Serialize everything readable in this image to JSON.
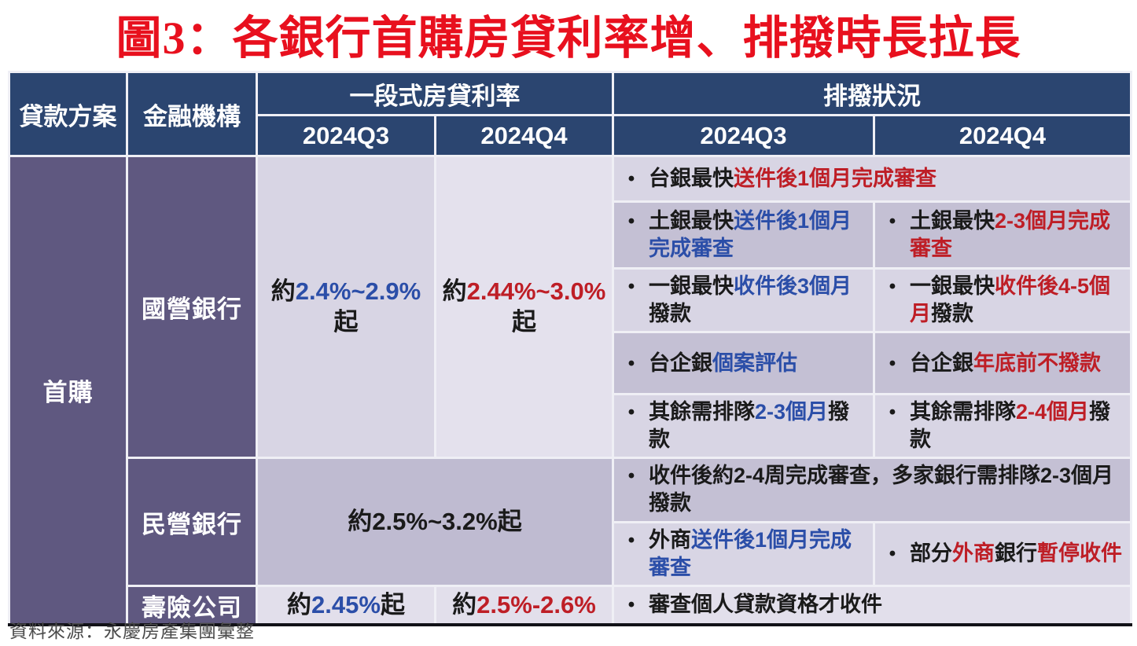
{
  "title": "圖3：各銀行首購房貸利率增、排撥時長拉長",
  "source_note": "資料來源：永慶房產集團彙整",
  "glyphs": {
    "bullet": "•"
  },
  "colors": {
    "title_red": "#E8101E",
    "header_bg": "#2B4570",
    "label_bg": "#5F5880",
    "row_light": "#D8D5E4",
    "row_lighter": "#E4E1ED",
    "row_dark": "#C4C0D4",
    "row_mid": "#BFBBD1",
    "row_pale": "#E2DFEB",
    "text_black": "#1A1A1A",
    "text_blue": "#2B4EA8",
    "text_red": "#BE1E26",
    "grid_line": "#EFEFF5",
    "outer_border": "#121218",
    "source_gray": "#4B4B4B"
  },
  "table": {
    "headers": {
      "loan_plan": "貸款方案",
      "institution": "金融機構",
      "rate_group": "一段式房貸利率",
      "disb_group": "排撥狀況",
      "q3": "2024Q3",
      "q4": "2024Q4"
    },
    "loan_plan": "首購",
    "institutions": {
      "state": "國營銀行",
      "private": "民營銀行",
      "life": "壽險公司"
    },
    "rates": {
      "state_q3": [
        {
          "t": "約",
          "c": "k"
        },
        {
          "t": "2.4%~2.9%",
          "c": "b"
        },
        {
          "t": "起",
          "c": "k"
        }
      ],
      "state_q4": [
        {
          "t": "約",
          "c": "k"
        },
        {
          "t": "2.44%~3.0%",
          "c": "r"
        },
        {
          "t": "起",
          "c": "k"
        }
      ],
      "private_all": [
        {
          "t": "約2.5%~3.2%起",
          "c": "k"
        }
      ],
      "life_q3": [
        {
          "t": "約",
          "c": "k"
        },
        {
          "t": "2.45%",
          "c": "b"
        },
        {
          "t": "起",
          "c": "k"
        }
      ],
      "life_q4": [
        {
          "t": "約",
          "c": "k"
        },
        {
          "t": "2.5%-2.6%",
          "c": "r"
        }
      ]
    },
    "disbursement": {
      "row_a": [
        {
          "t": "台銀最快",
          "c": "k"
        },
        {
          "t": "送件後1個月完成審查",
          "c": "r"
        }
      ],
      "row_b_q3": [
        {
          "t": "土銀最快",
          "c": "k"
        },
        {
          "t": "送件後1個月完成審查",
          "c": "b"
        }
      ],
      "row_b_q4": [
        {
          "t": "土銀最快",
          "c": "k"
        },
        {
          "t": "2-3個月完成審查",
          "c": "r"
        }
      ],
      "row_c_q3": [
        {
          "t": "一銀最快",
          "c": "k"
        },
        {
          "t": "收件後3個月",
          "c": "b"
        },
        {
          "t": "撥款",
          "c": "k"
        }
      ],
      "row_c_q4": [
        {
          "t": "一銀最快",
          "c": "k"
        },
        {
          "t": "收件後4-5個月",
          "c": "r"
        },
        {
          "t": "撥款",
          "c": "k"
        }
      ],
      "row_d_q3": [
        {
          "t": "台企銀",
          "c": "k"
        },
        {
          "t": "個案評估",
          "c": "b"
        }
      ],
      "row_d_q4": [
        {
          "t": "台企銀",
          "c": "k"
        },
        {
          "t": "年底前不撥款",
          "c": "r"
        }
      ],
      "row_e_q3": [
        {
          "t": "其餘需排隊",
          "c": "k"
        },
        {
          "t": "2-3個月",
          "c": "b"
        },
        {
          "t": "撥款",
          "c": "k"
        }
      ],
      "row_e_q4": [
        {
          "t": "其餘需排隊",
          "c": "k"
        },
        {
          "t": "2-4個月",
          "c": "r"
        },
        {
          "t": "撥款",
          "c": "k"
        }
      ],
      "row_f": [
        {
          "t": "收件後約2-4周完成審查，多家銀行需排隊2-3個月撥款",
          "c": "k"
        }
      ],
      "row_g_q3": [
        {
          "t": "外商",
          "c": "k"
        },
        {
          "t": "送件後1個月完成審查",
          "c": "b"
        }
      ],
      "row_g_q4": [
        {
          "t": "部分",
          "c": "k"
        },
        {
          "t": "外商",
          "c": "r"
        },
        {
          "t": "銀行",
          "c": "k"
        },
        {
          "t": "暫停收件",
          "c": "r"
        }
      ],
      "row_h": [
        {
          "t": "審查個人貸款資格才收件",
          "c": "k"
        }
      ]
    }
  },
  "chart_data": {
    "type": "table",
    "title": "圖3：各銀行首購房貸利率增、排撥時長拉長",
    "columns": [
      "貸款方案",
      "金融機構",
      "一段式房貸利率 2024Q3",
      "一段式房貸利率 2024Q4",
      "排撥狀況 2024Q3",
      "排撥狀況 2024Q4"
    ],
    "loan_plan": "首購",
    "rows": [
      {
        "institution": "國營銀行",
        "rate_2024Q3": "約2.4%~2.9%起",
        "rate_2024Q4": "約2.44%~3.0%起",
        "disbursement_common": [
          "台銀最快送件後1個月完成審查"
        ],
        "disbursement_2024Q3": [
          "土銀最快送件後1個月完成審查",
          "一銀最快收件後3個月撥款",
          "台企銀個案評估",
          "其餘需排隊2-3個月撥款"
        ],
        "disbursement_2024Q4": [
          "土銀最快2-3個月完成審查",
          "一銀最快收件後4-5個月撥款",
          "台企銀年底前不撥款",
          "其餘需排隊2-4個月撥款"
        ]
      },
      {
        "institution": "民營銀行",
        "rate_2024Q3": "約2.5%~3.2%起",
        "rate_2024Q4": "約2.5%~3.2%起",
        "disbursement_common": [
          "收件後約2-4周完成審查，多家銀行需排隊2-3個月撥款"
        ],
        "disbursement_2024Q3": [
          "外商送件後1個月完成審查"
        ],
        "disbursement_2024Q4": [
          "部分外商銀行暫停收件"
        ]
      },
      {
        "institution": "壽險公司",
        "rate_2024Q3": "約2.45%起",
        "rate_2024Q4": "約2.5%-2.6%",
        "disbursement_common": [
          "審查個人貸款資格才收件"
        ],
        "disbursement_2024Q3": [],
        "disbursement_2024Q4": []
      }
    ],
    "source": "資料來源：永慶房產集團彙整"
  }
}
